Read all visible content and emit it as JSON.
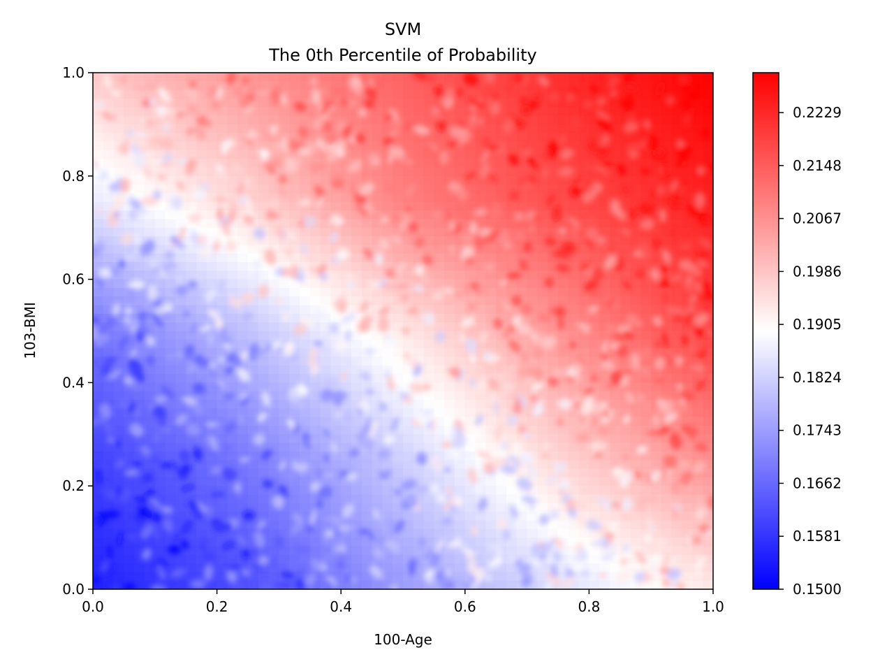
{
  "chart_data": {
    "type": "heatmap",
    "title": "SVM",
    "subtitle": "The 0th Percentile of Probability",
    "xlabel": "100-Age",
    "ylabel": "103-BMI",
    "xlim": [
      0.0,
      1.0
    ],
    "ylim": [
      0.0,
      1.0
    ],
    "x_ticks": [
      "0.0",
      "0.2",
      "0.4",
      "0.6",
      "0.8",
      "1.0"
    ],
    "y_ticks": [
      "0.0",
      "0.2",
      "0.4",
      "0.6",
      "0.8",
      "1.0"
    ],
    "colorbar": {
      "cmap": "bwr",
      "range": [
        0.15,
        0.229
      ],
      "colors": {
        "low": "#0000ff",
        "mid": "#ffffff",
        "high": "#ff0000"
      },
      "ticks": [
        "0.1500",
        "0.1581",
        "0.1662",
        "0.1743",
        "0.1824",
        "0.1905",
        "0.1986",
        "0.2067",
        "0.2148",
        "0.2229"
      ]
    },
    "grid_columns": [
      0.0,
      0.25,
      0.5,
      0.75,
      1.0
    ],
    "grid_rows": [
      1.0,
      0.75,
      0.5,
      0.25,
      0.0
    ],
    "values": [
      [
        0.198,
        0.206,
        0.214,
        0.222,
        0.229
      ],
      [
        0.186,
        0.196,
        0.209,
        0.217,
        0.224
      ],
      [
        0.168,
        0.18,
        0.193,
        0.206,
        0.219
      ],
      [
        0.16,
        0.169,
        0.182,
        0.196,
        0.207
      ],
      [
        0.155,
        0.162,
        0.174,
        0.184,
        0.193
      ]
    ]
  }
}
